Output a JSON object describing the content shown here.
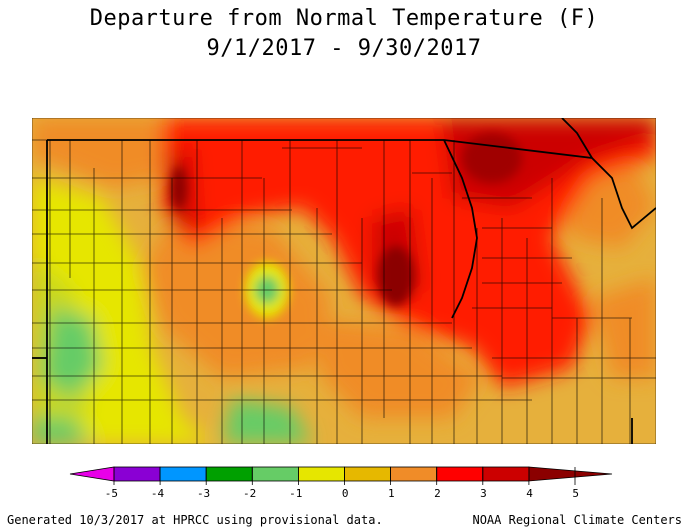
{
  "title_line1": "Departure from Normal Temperature (F)",
  "title_line2": "9/1/2017 - 9/30/2017",
  "legend": {
    "ticks": [
      "-5",
      "-4",
      "-3",
      "-2",
      "-1",
      "0",
      "1",
      "2",
      "3",
      "4",
      "5"
    ],
    "colors": [
      "#e800e8",
      "#8a00d4",
      "#0096ff",
      "#00a000",
      "#66cc66",
      "#e6e600",
      "#e6b800",
      "#f08c28",
      "#ff0000",
      "#cc0000",
      "#8b0000"
    ]
  },
  "footer_left": "Generated 10/3/2017 at HPRCC using provisional data.",
  "footer_right": "NOAA Regional Climate Centers"
}
